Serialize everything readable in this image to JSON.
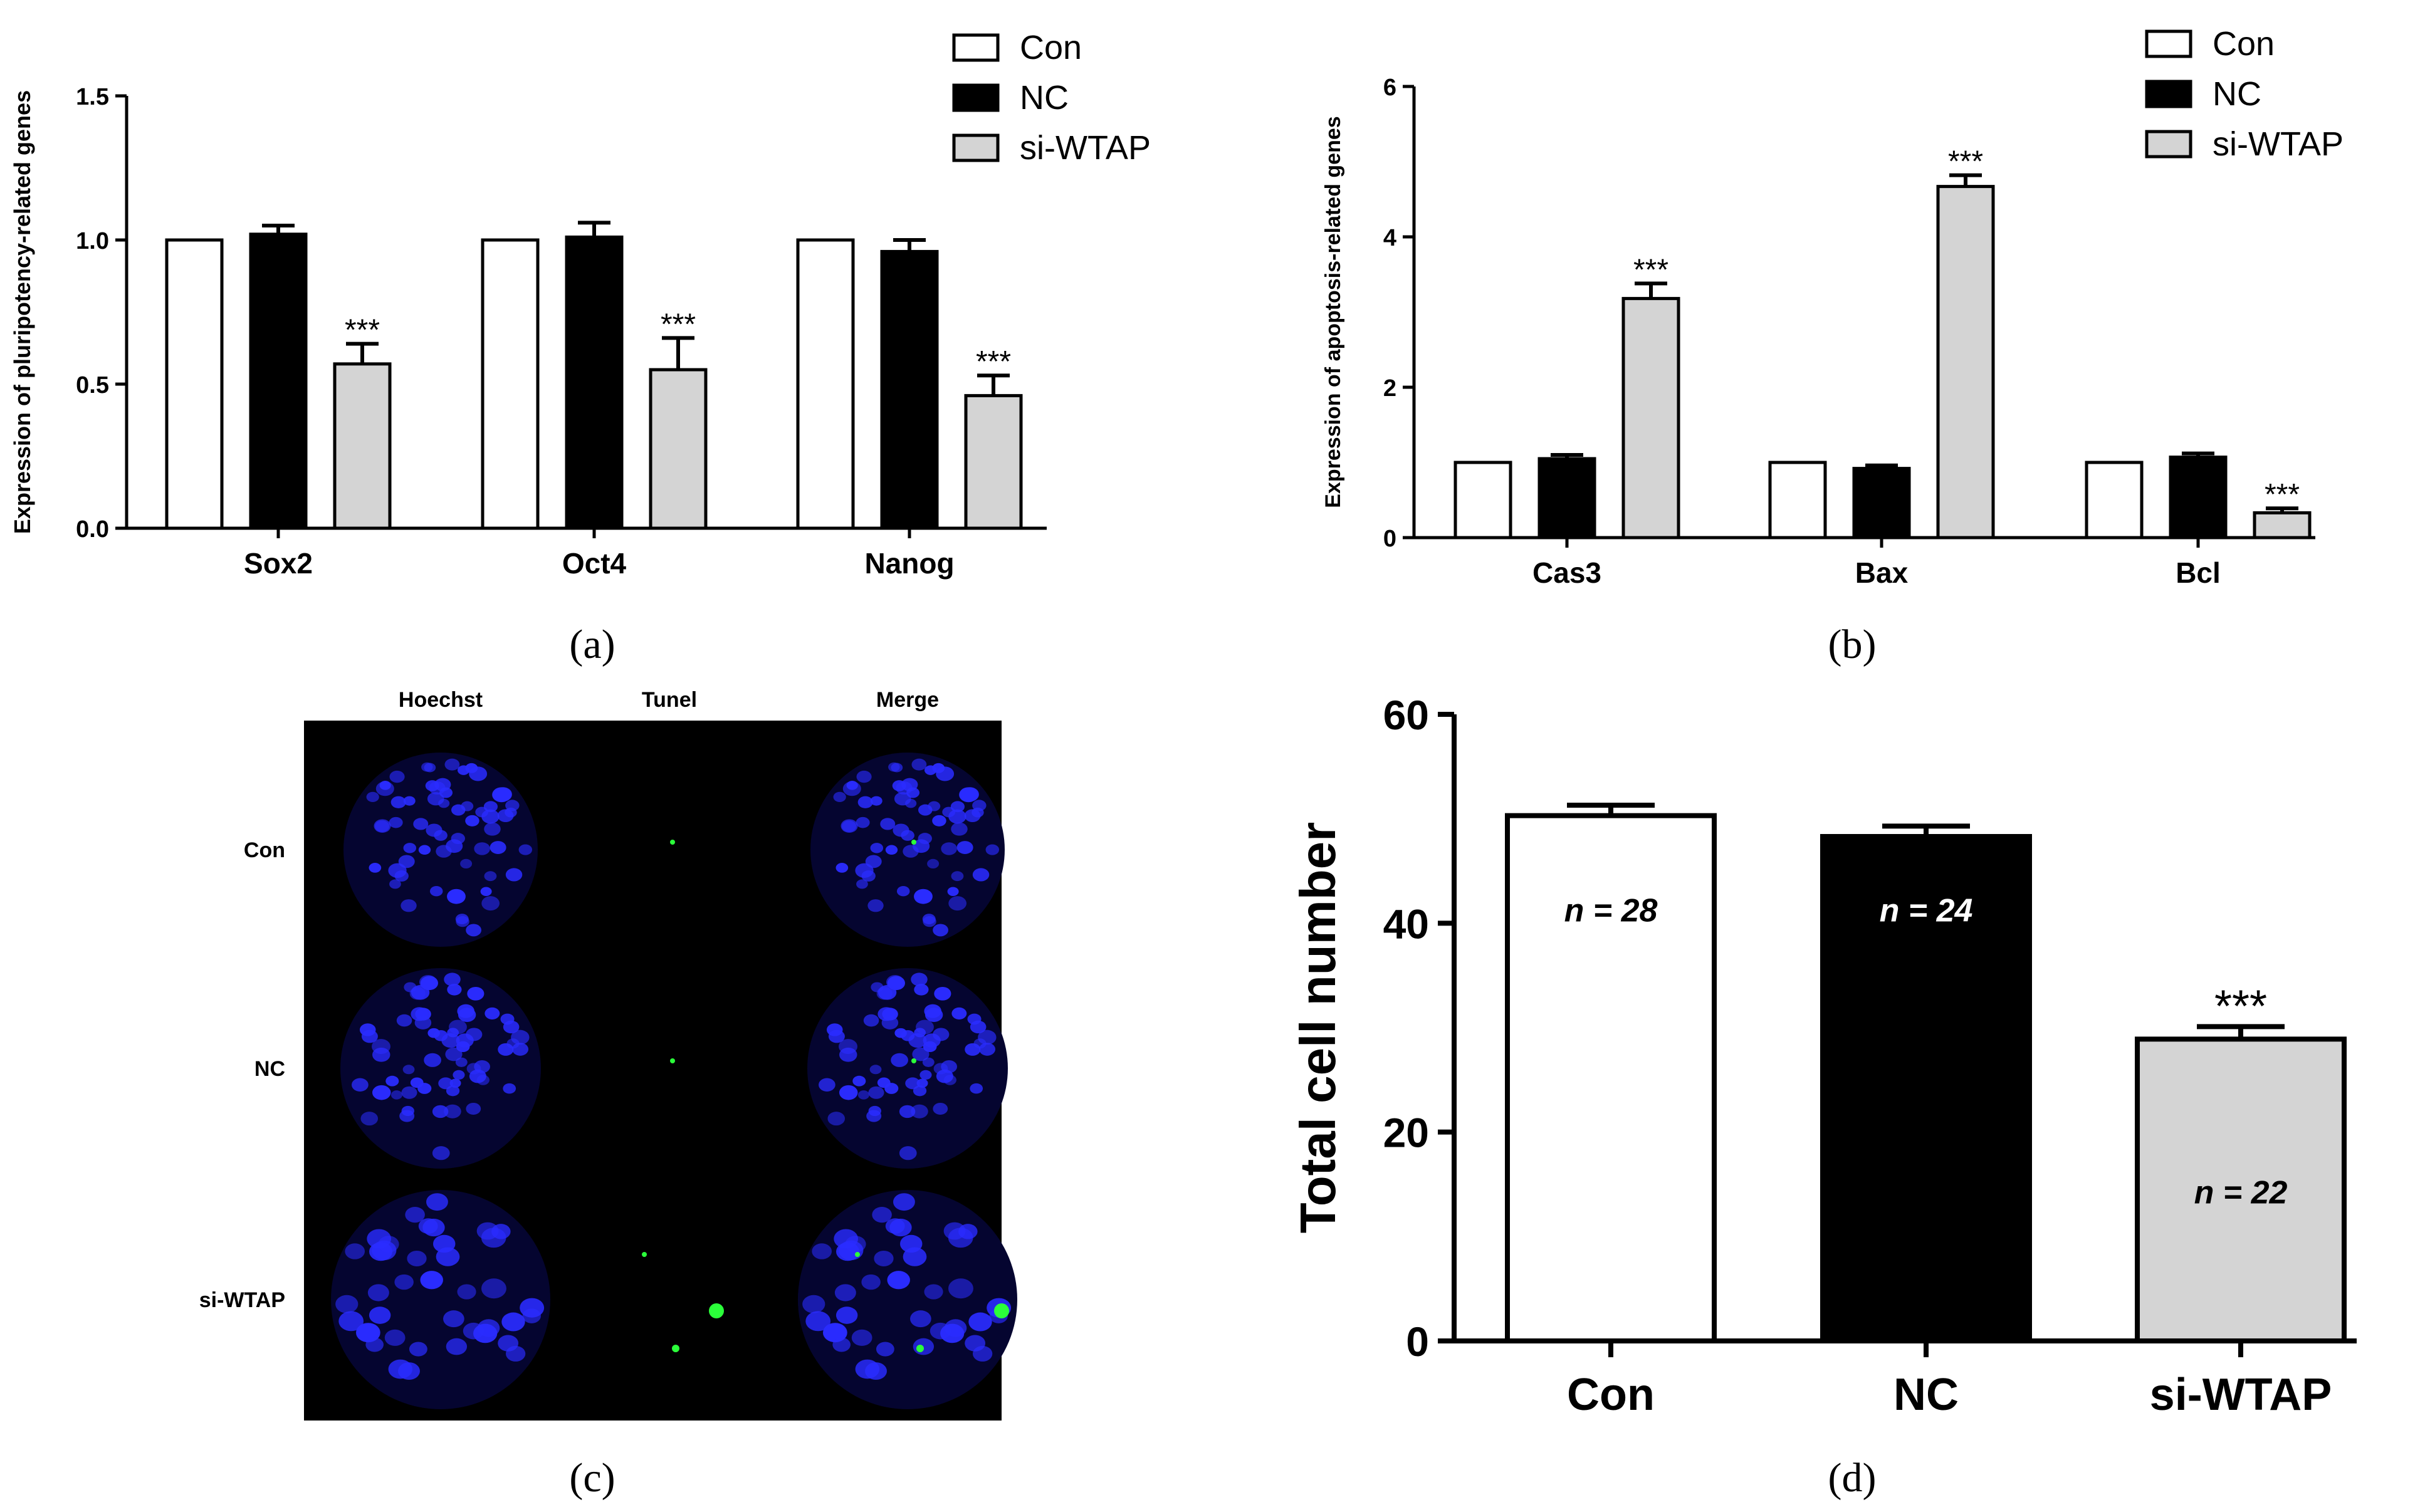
{
  "panels": {
    "a": {
      "caption": "(a)"
    },
    "b": {
      "caption": "(b)"
    },
    "c": {
      "caption": "(c)"
    },
    "d": {
      "caption": "(d)"
    }
  },
  "colors": {
    "con": "#ffffff",
    "nc": "#000000",
    "si": "#d4d4d4",
    "axis": "#000000",
    "hoechst": "#2a2cff",
    "tunel": "#2bff3a",
    "panel_bg": "#000000"
  },
  "chart_data": [
    {
      "id": "a",
      "type": "bar",
      "ylabel": "Expression of pluripotency-related genes",
      "xlabel": "",
      "categories": [
        "Sox2",
        "Oct4",
        "Nanog"
      ],
      "ylim": [
        0,
        1.5
      ],
      "yticks": [
        "0.0",
        "0.5",
        "1.0",
        "1.5"
      ],
      "series": [
        {
          "name": "Con",
          "values": [
            1.0,
            1.0,
            1.0
          ],
          "errors": [
            0,
            0,
            0
          ]
        },
        {
          "name": "NC",
          "values": [
            1.02,
            1.01,
            0.96
          ],
          "errors": [
            0.03,
            0.05,
            0.04
          ]
        },
        {
          "name": "si-WTAP",
          "values": [
            0.57,
            0.55,
            0.46
          ],
          "errors": [
            0.07,
            0.11,
            0.07
          ]
        }
      ],
      "significance": [
        "",
        "",
        "***"
      ],
      "legend": [
        "Con",
        "NC",
        "si-WTAP"
      ],
      "legend_position": "top-right"
    },
    {
      "id": "b",
      "type": "bar",
      "ylabel": "Expression of apoptosis-related genes",
      "xlabel": "",
      "categories": [
        "Cas3",
        "Bax",
        "Bcl"
      ],
      "ylim": [
        0,
        6
      ],
      "yticks": [
        "0",
        "2",
        "4",
        "6"
      ],
      "series": [
        {
          "name": "Con",
          "values": [
            1.0,
            1.0,
            1.0
          ],
          "errors": [
            0,
            0,
            0
          ]
        },
        {
          "name": "NC",
          "values": [
            1.05,
            0.92,
            1.07
          ],
          "errors": [
            0.05,
            0.04,
            0.05
          ]
        },
        {
          "name": "si-WTAP",
          "values": [
            3.18,
            4.67,
            0.33
          ],
          "errors": [
            0.2,
            0.15,
            0.06
          ]
        }
      ],
      "significance": [
        "",
        "",
        "***"
      ],
      "legend": [
        "Con",
        "NC",
        "si-WTAP"
      ],
      "legend_position": "top-right"
    },
    {
      "id": "d",
      "type": "bar",
      "ylabel": "Total cell number",
      "xlabel": "",
      "categories": [
        "Con",
        "NC",
        "si-WTAP"
      ],
      "ylim": [
        0,
        60
      ],
      "yticks": [
        "0",
        "20",
        "40",
        "60"
      ],
      "values": [
        50.3,
        48.3,
        28.9
      ],
      "errors": [
        1.0,
        1.0,
        1.2
      ],
      "n_labels": [
        "n = 28",
        "n = 24",
        "n = 22"
      ],
      "significance": [
        "",
        "",
        "***"
      ]
    }
  ],
  "micrograph": {
    "columns": [
      "Hoechst",
      "Tunel",
      "Merge"
    ],
    "rows": [
      "Con",
      "NC",
      "si-WTAP"
    ]
  }
}
